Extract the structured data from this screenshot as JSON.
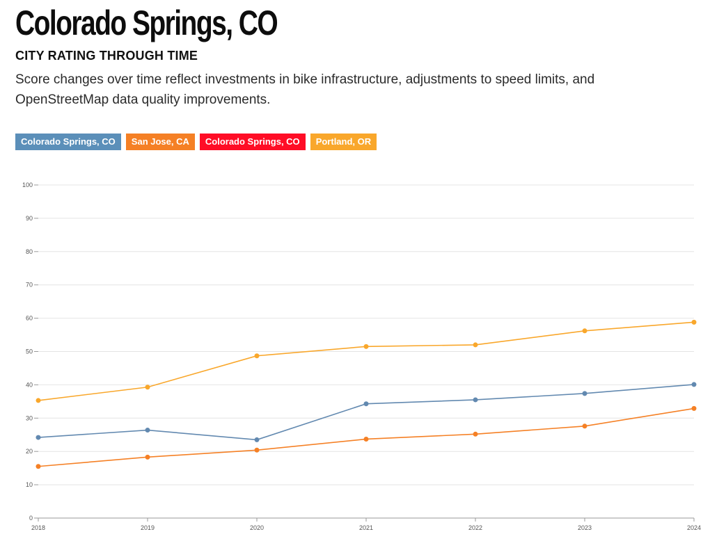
{
  "header": {
    "title": "Colorado Springs, CO",
    "subtitle": "CITY RATING THROUGH TIME",
    "description": "Score changes over time reflect investments in bike infrastructure, adjustments to speed limits, and OpenStreetMap data quality improvements."
  },
  "legend": [
    {
      "label": "Colorado Springs, CO",
      "color": "#5b8fb9"
    },
    {
      "label": "San Jose, CA",
      "color": "#f58025"
    },
    {
      "label": "Colorado Springs, CO",
      "color": "#ff0d26"
    },
    {
      "label": "Portland, OR",
      "color": "#f9a72b"
    }
  ],
  "chart_data": {
    "type": "line",
    "title": "",
    "xlabel": "",
    "ylabel": "",
    "x": [
      "2018",
      "2019",
      "2020",
      "2021",
      "2022",
      "2023",
      "2024"
    ],
    "ylim": [
      0,
      100
    ],
    "yticks": [
      0,
      10,
      20,
      30,
      40,
      50,
      60,
      70,
      80,
      90,
      100
    ],
    "grid": true,
    "series": [
      {
        "name": "Colorado Springs, CO",
        "color": "#6289b0",
        "values": [
          24.2,
          26.4,
          23.5,
          34.3,
          35.5,
          37.4,
          40.1
        ]
      },
      {
        "name": "San Jose, CA",
        "color": "#f58025",
        "values": [
          15.5,
          18.3,
          20.4,
          23.7,
          25.2,
          27.6,
          32.9
        ]
      },
      {
        "name": "Portland, OR",
        "color": "#f9a72b",
        "values": [
          35.3,
          39.3,
          48.7,
          51.5,
          52.0,
          56.2,
          58.8
        ]
      }
    ]
  }
}
